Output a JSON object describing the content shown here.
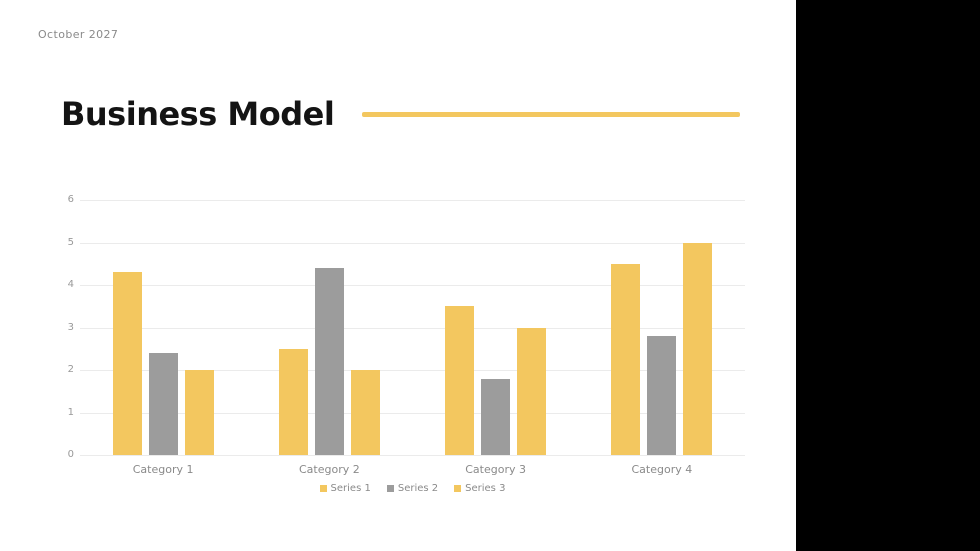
{
  "slide": {
    "date": "October 2027",
    "title": "Business Model",
    "accent_color": "#f3c75f",
    "panel_color": "#000000"
  },
  "chart_data": {
    "type": "bar",
    "title": "",
    "xlabel": "",
    "ylabel": "",
    "categories": [
      "Category 1",
      "Category 2",
      "Category 3",
      "Category 4"
    ],
    "series": [
      {
        "name": "Series 1",
        "color": "#f3c75f",
        "values": [
          4.3,
          2.5,
          3.5,
          4.5
        ]
      },
      {
        "name": "Series 2",
        "color": "#9c9c9c",
        "values": [
          2.4,
          4.4,
          1.8,
          2.8
        ]
      },
      {
        "name": "Series 3",
        "color": "#f3c75f",
        "values": [
          2.0,
          2.0,
          3.0,
          5.0
        ]
      }
    ],
    "ylim": [
      0,
      6
    ],
    "yticks": [
      0,
      1,
      2,
      3,
      4,
      5,
      6
    ],
    "grid": true,
    "legend_position": "bottom"
  }
}
